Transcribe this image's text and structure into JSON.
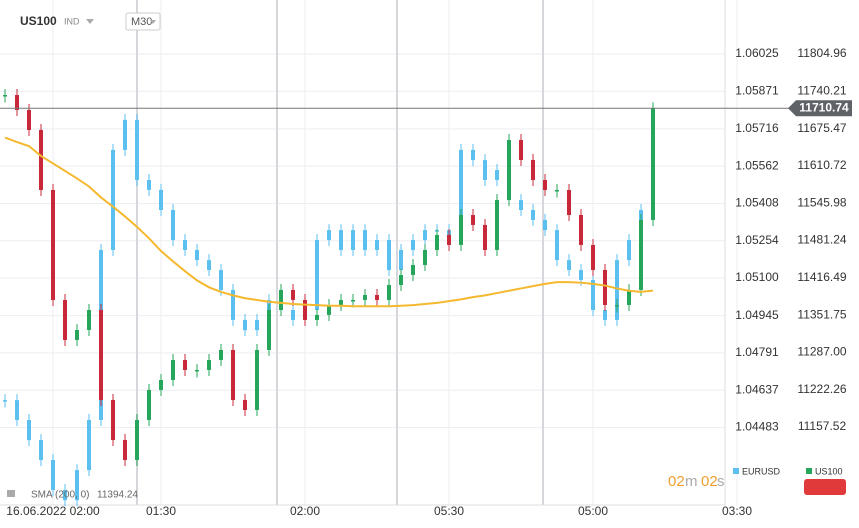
{
  "header": {
    "symbol": "US100",
    "market": "IND",
    "timeframe": "M30"
  },
  "timer": {
    "minutes": "02",
    "m": "m",
    "seconds": "02",
    "s": "s"
  },
  "indicator": {
    "name": "SMA",
    "params": "(200, 0)",
    "value": 11394.24
  },
  "chart_data": {
    "type": "candlestick",
    "categories": [
      null,
      null,
      null,
      null,
      "16.06.2022 02:00",
      null,
      null,
      null,
      null,
      null,
      null,
      null,
      null,
      "01:30",
      null,
      null,
      null,
      null,
      null,
      null,
      null,
      null,
      null,
      null,
      null,
      "02:00",
      null,
      null,
      null,
      null,
      null,
      null,
      null,
      null,
      null,
      null,
      null,
      "05:30",
      null,
      null,
      null,
      null,
      null,
      null,
      null,
      null,
      null,
      null,
      null,
      "05:00",
      null,
      null,
      null,
      null,
      null,
      null,
      null,
      null,
      null,
      null,
      null,
      "03:30"
    ],
    "ylim": [
      1.04163,
      1.06248
    ],
    "yticks": [
      1.06025,
      1.05871,
      1.05716,
      1.05562,
      1.05408,
      1.05254,
      {
        "value": 1.051,
        "label": "1.05100"
      },
      1.04945,
      1.04791,
      1.04637,
      1.04483
    ],
    "y2lim": [
      11022.1,
      11898.7
    ],
    "y2ticks": [
      11804.96,
      11740.21,
      11675.47,
      11610.72,
      11545.98,
      11481.24,
      11416.49,
      11351.75,
      {
        "value": 11287,
        "label": "11287.00"
      },
      11222.26,
      11157.52
    ],
    "grid": true,
    "current_price": 11710.74,
    "series": [
      {
        "name": "EURUSD",
        "color": "#5bc0f0",
        "axis": "y",
        "values": [
          1.04596,
          1.04514,
          1.04431,
          1.04349,
          1.04225,
          1.04183,
          1.04307,
          1.04514,
          1.05216,
          1.05629,
          1.05753,
          1.05505,
          1.05464,
          1.05381,
          1.05257,
          1.05216,
          1.05174,
          1.05133,
          1.05051,
          1.04927,
          1.04885,
          1.04927,
          1.05009,
          1.04968,
          1.04927,
          1.04968,
          1.05257,
          1.05298,
          1.05216,
          1.05298,
          1.05216,
          1.05257,
          1.05133,
          1.05216,
          1.05257,
          1.05298,
          1.05298,
          1.05257,
          1.05629,
          1.05587,
          1.05505,
          1.05546,
          1.05422,
          1.05381,
          1.0534,
          1.05298,
          1.05174,
          1.05133,
          1.05092,
          1.04968,
          1.04927,
          1.05174,
          1.05257,
          1.05381,
          1.05546,
          null,
          null,
          null,
          null,
          null,
          null,
          null
        ]
      },
      {
        "name": "US100",
        "color_up": "#26a65b",
        "color_down": "#c7283a",
        "color": "#26a65b",
        "axis": "y2",
        "values": [
          11733.8,
          11707.8,
          11673.1,
          11568.9,
          11378.0,
          11308.6,
          11325.9,
          11360.6,
          11204.4,
          11135.0,
          11100.3,
          11169.7,
          11221.8,
          11239.1,
          11273.8,
          11256.5,
          11256.5,
          11273.8,
          11291.2,
          11204.4,
          11187.1,
          11291.2,
          11360.6,
          11395.4,
          11378.0,
          11343.3,
          11352.0,
          11369.3,
          11378.0,
          11378.0,
          11386.7,
          11378.0,
          11404.0,
          11421.4,
          11438.7,
          11464.8,
          11490.8,
          11473.5,
          11525.5,
          11508.2,
          11464.8,
          11551.6,
          11655.7,
          11621.0,
          11586.3,
          11568.9,
          11568.9,
          11525.5,
          11473.5,
          11430.1,
          11369.3,
          11369.3,
          11395.4,
          11516.9,
          11710.74,
          null,
          null,
          null,
          null,
          null,
          null,
          null
        ]
      }
    ],
    "sma": {
      "name": "SMA",
      "color": "#f5b82e",
      "axis": "y2",
      "values": [
        11660,
        11652,
        11645,
        11628,
        11615,
        11602,
        11589,
        11575,
        11556,
        11540,
        11523,
        11505,
        11485,
        11463,
        11445,
        11428,
        11412,
        11400,
        11392,
        11386,
        11381,
        11378,
        11375,
        11373,
        11371,
        11370,
        11369,
        11368,
        11368,
        11367,
        11367,
        11367,
        11367,
        11368,
        11369,
        11371,
        11373,
        11376,
        11379,
        11383,
        11386,
        11390,
        11394,
        11398,
        11402,
        11406,
        11409,
        11409,
        11408,
        11406,
        11403,
        11398,
        11394,
        11392,
        11394.24,
        null,
        null,
        null,
        null,
        null,
        null,
        null
      ]
    }
  }
}
